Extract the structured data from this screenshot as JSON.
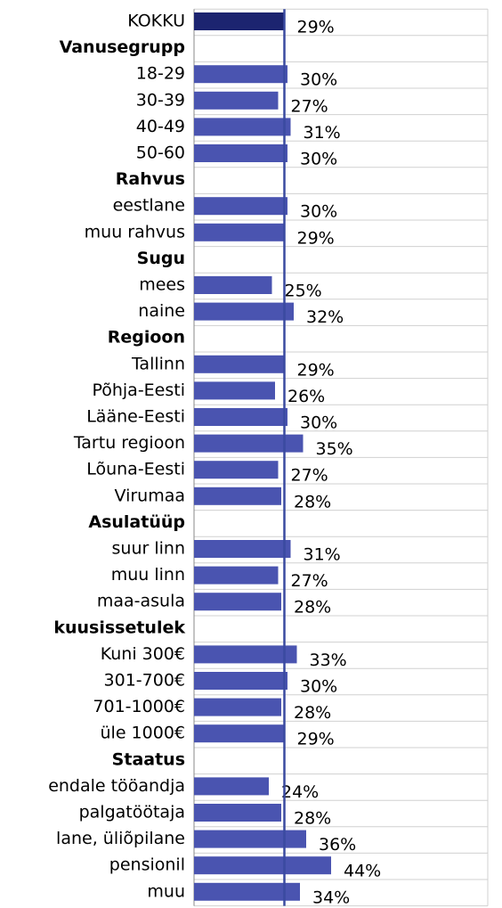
{
  "chart_data": {
    "type": "bar",
    "orientation": "horizontal",
    "categories": [
      "KOKKU",
      "Vanusegrupp",
      "18-29",
      "30-39",
      "40-49",
      "50-60",
      "Rahvus",
      "eestlane",
      "muu rahvus",
      "Sugu",
      "mees",
      "naine",
      "Regioon",
      "Tallinn",
      "Põhja-Eesti",
      "Lääne-Eesti",
      "Tartu regioon",
      "Lõuna-Eesti",
      "Virumaa",
      "Asulatüüp",
      "suur linn",
      "muu linn",
      "maa-asula",
      "kuusissetulek",
      "Kuni 300€",
      "301-700€",
      "701-1000€",
      "üle 1000€",
      "Staatus",
      "endale tööandja",
      "palgatöötaja",
      "lane, üliõpilane",
      "pensionil",
      "muu"
    ],
    "values": [
      29,
      null,
      30,
      27,
      31,
      30,
      null,
      30,
      29,
      null,
      25,
      32,
      null,
      29,
      26,
      30,
      35,
      27,
      28,
      null,
      31,
      27,
      28,
      null,
      33,
      30,
      28,
      29,
      null,
      24,
      28,
      36,
      44,
      34
    ],
    "value_labels": [
      "29%",
      null,
      "30%",
      "27%",
      "31%",
      "30%",
      null,
      "30%",
      "29%",
      null,
      "25%",
      "32%",
      null,
      "29%",
      "26%",
      "30%",
      "35%",
      "27%",
      "28%",
      null,
      "31%",
      "27%",
      "28%",
      null,
      "33%",
      "30%",
      "28%",
      "29%",
      null,
      "24%",
      "28%",
      "36%",
      "44%",
      "34%"
    ],
    "color": "#4a54b0",
    "total_color": "#1c2470",
    "reference_line_color": "#3a4aa0"
  }
}
